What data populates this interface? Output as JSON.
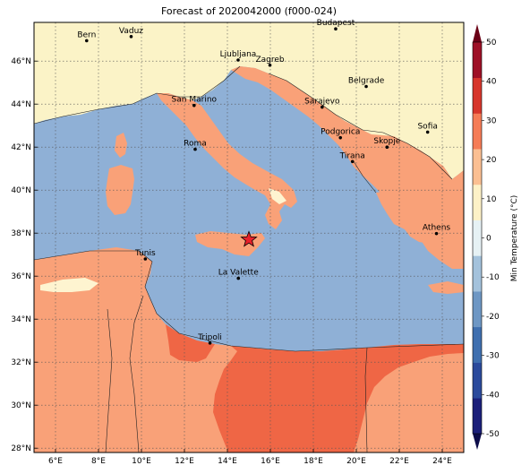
{
  "title": "Forecast of 2020042000 (f000-024)",
  "map": {
    "lon_range": [
      5,
      25
    ],
    "lat_range": [
      27.8,
      47.8
    ],
    "lon_ticks": [
      "6°E",
      "8°E",
      "10°E",
      "12°E",
      "14°E",
      "16°E",
      "18°E",
      "20°E",
      "22°E",
      "24°E"
    ],
    "lat_ticks": [
      "28°N",
      "30°N",
      "32°N",
      "34°N",
      "36°N",
      "38°N",
      "40°N",
      "42°N",
      "44°N",
      "46°N"
    ],
    "colors": {
      "sea": "#8fb0d6",
      "cool_land": "#fbf3c7",
      "warm": "#f9a178",
      "hot": "#ef6645",
      "pale": "#fef4d0"
    },
    "marker": {
      "label": "star-marker",
      "lon": 15.0,
      "lat": 37.7,
      "color": "#e8202a"
    }
  },
  "cities": [
    {
      "name": "Bern",
      "lon": 7.45,
      "lat": 46.95
    },
    {
      "name": "Vaduz",
      "lon": 9.52,
      "lat": 47.14
    },
    {
      "name": "Budapest",
      "lon": 19.04,
      "lat": 47.5
    },
    {
      "name": "Ljubljana",
      "lon": 14.5,
      "lat": 46.05
    },
    {
      "name": "Zagreb",
      "lon": 15.98,
      "lat": 45.81
    },
    {
      "name": "Belgrade",
      "lon": 20.46,
      "lat": 44.82
    },
    {
      "name": "San Marino",
      "lon": 12.45,
      "lat": 43.94
    },
    {
      "name": "Sarajevo",
      "lon": 18.41,
      "lat": 43.86
    },
    {
      "name": "Sofia",
      "lon": 23.32,
      "lat": 42.7
    },
    {
      "name": "Podgorica",
      "lon": 19.26,
      "lat": 42.44
    },
    {
      "name": "Roma",
      "lon": 12.5,
      "lat": 41.9
    },
    {
      "name": "Skopje",
      "lon": 21.43,
      "lat": 42.0
    },
    {
      "name": "Tirana",
      "lon": 19.82,
      "lat": 41.33
    },
    {
      "name": "Athens",
      "lon": 23.73,
      "lat": 37.98
    },
    {
      "name": "Tunis",
      "lon": 10.18,
      "lat": 36.8
    },
    {
      "name": "La Valette",
      "lon": 14.51,
      "lat": 35.9
    },
    {
      "name": "Tripoli",
      "lon": 13.19,
      "lat": 32.89
    }
  ],
  "colorbar": {
    "label": "Min Temperature (°C)",
    "ticks": [
      "-50",
      "-40",
      "-30",
      "-20",
      "-10",
      "0",
      "10",
      "20",
      "30",
      "40",
      "50"
    ],
    "range": [
      -50,
      50
    ],
    "colors": [
      "#1b1f7a",
      "#2b4a9c",
      "#3f6faf",
      "#6e97c4",
      "#a4c2dc",
      "#e6f1f4",
      "#fdf1c7",
      "#fbbf92",
      "#f57c56",
      "#d7362c",
      "#9e1026"
    ],
    "extend_colors": {
      "low": "#0c0c4a",
      "high": "#6b0016"
    }
  }
}
